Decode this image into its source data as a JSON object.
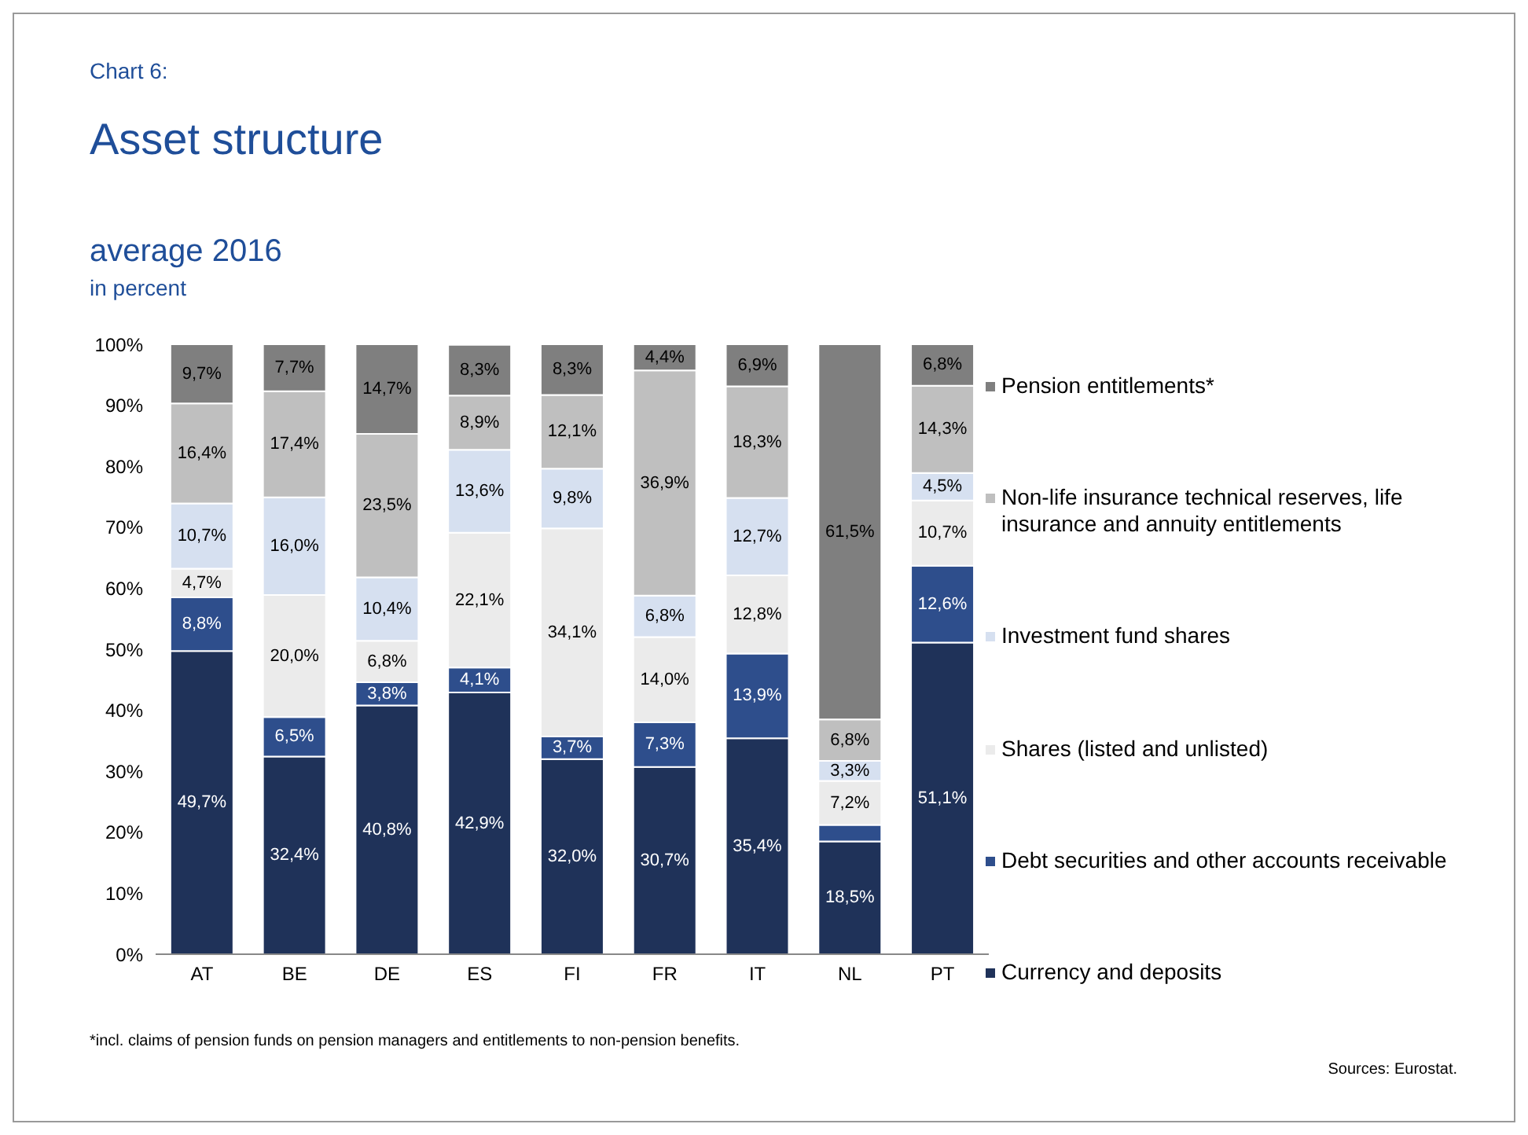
{
  "chart_data": {
    "type": "bar",
    "stacked": true,
    "title": "Asset structure",
    "subtitle": "average 2016",
    "ylabel": "in percent",
    "annotations": [
      "Chart 6:",
      "*incl. claims of pension funds on pension managers and entitlements to non-pension benefits.",
      "Sources: Eurostat."
    ],
    "categories": [
      "AT",
      "BE",
      "DE",
      "ES",
      "FI",
      "FR",
      "IT",
      "NL",
      "PT"
    ],
    "ylim": [
      0,
      100
    ],
    "yticks": [
      {
        "value": 0,
        "label": "0%"
      },
      {
        "value": 10,
        "label": "10%"
      },
      {
        "value": 20,
        "label": "20%"
      },
      {
        "value": 30,
        "label": "30%"
      },
      {
        "value": 40,
        "label": "40%"
      },
      {
        "value": 50,
        "label": "50%"
      },
      {
        "value": 60,
        "label": "60%"
      },
      {
        "value": 70,
        "label": "70%"
      },
      {
        "value": 80,
        "label": "80%"
      },
      {
        "value": 90,
        "label": "90%"
      },
      {
        "value": 100,
        "label": "100%"
      }
    ],
    "grid": false,
    "legend": "right",
    "series": [
      {
        "name": "Currency and deposits",
        "color": "#1f3259",
        "values": [
          49.7,
          32.4,
          40.8,
          42.9,
          32.0,
          30.7,
          35.4,
          18.5,
          51.1
        ],
        "value_labels": [
          "49,7%",
          "32,4%",
          "40,8%",
          "42,9%",
          "32,0%",
          "30,7%",
          "35,4%",
          "18,5%",
          "51,1%"
        ]
      },
      {
        "name": "Debt securities and other accounts receivable",
        "color": "#2e4e8c",
        "values": [
          8.8,
          6.5,
          3.8,
          4.1,
          3.7,
          7.3,
          13.9,
          2.7,
          12.6
        ],
        "value_labels": [
          "8,8%",
          "6,5%",
          "3,8%",
          "4,1%",
          "3,7%",
          "7,3%",
          "13,9%",
          null,
          "12,6%"
        ]
      },
      {
        "name": "Shares (listed and unlisted)",
        "color": "#ebebeb",
        "values": [
          4.7,
          20.0,
          6.8,
          22.1,
          34.1,
          14.0,
          12.8,
          7.2,
          10.7
        ],
        "value_labels": [
          "4,7%",
          "20,0%",
          "6,8%",
          "22,1%",
          "34,1%",
          "14,0%",
          "12,8%",
          "7,2%",
          "10,7%"
        ]
      },
      {
        "name": "Investment fund shares",
        "color": "#d6e0f0",
        "values": [
          10.7,
          16.0,
          10.4,
          13.6,
          9.8,
          6.8,
          12.7,
          3.3,
          4.5
        ],
        "value_labels": [
          "10,7%",
          "16,0%",
          "10,4%",
          "13,6%",
          "9,8%",
          "6,8%",
          "12,7%",
          "3,3%",
          "4,5%"
        ]
      },
      {
        "name": "Non-life insurance technical reserves, life insurance and annuity entitlements",
        "color": "#bfbfbf",
        "values": [
          16.4,
          17.4,
          23.5,
          8.9,
          12.1,
          36.9,
          18.3,
          6.8,
          14.3
        ],
        "value_labels": [
          "16,4%",
          "17,4%",
          "23,5%",
          "8,9%",
          "12,1%",
          "36,9%",
          "18,3%",
          "6,8%",
          "14,3%"
        ]
      },
      {
        "name": "Pension entitlements*",
        "color": "#7f7f7f",
        "values": [
          9.7,
          7.7,
          14.7,
          8.3,
          8.3,
          4.4,
          6.9,
          61.5,
          6.8
        ],
        "value_labels": [
          "9,7%",
          "7,7%",
          "14,7%",
          "8,3%",
          "8,3%",
          "4,4%",
          "6,9%",
          "61,5%",
          "6,8%"
        ]
      }
    ]
  }
}
